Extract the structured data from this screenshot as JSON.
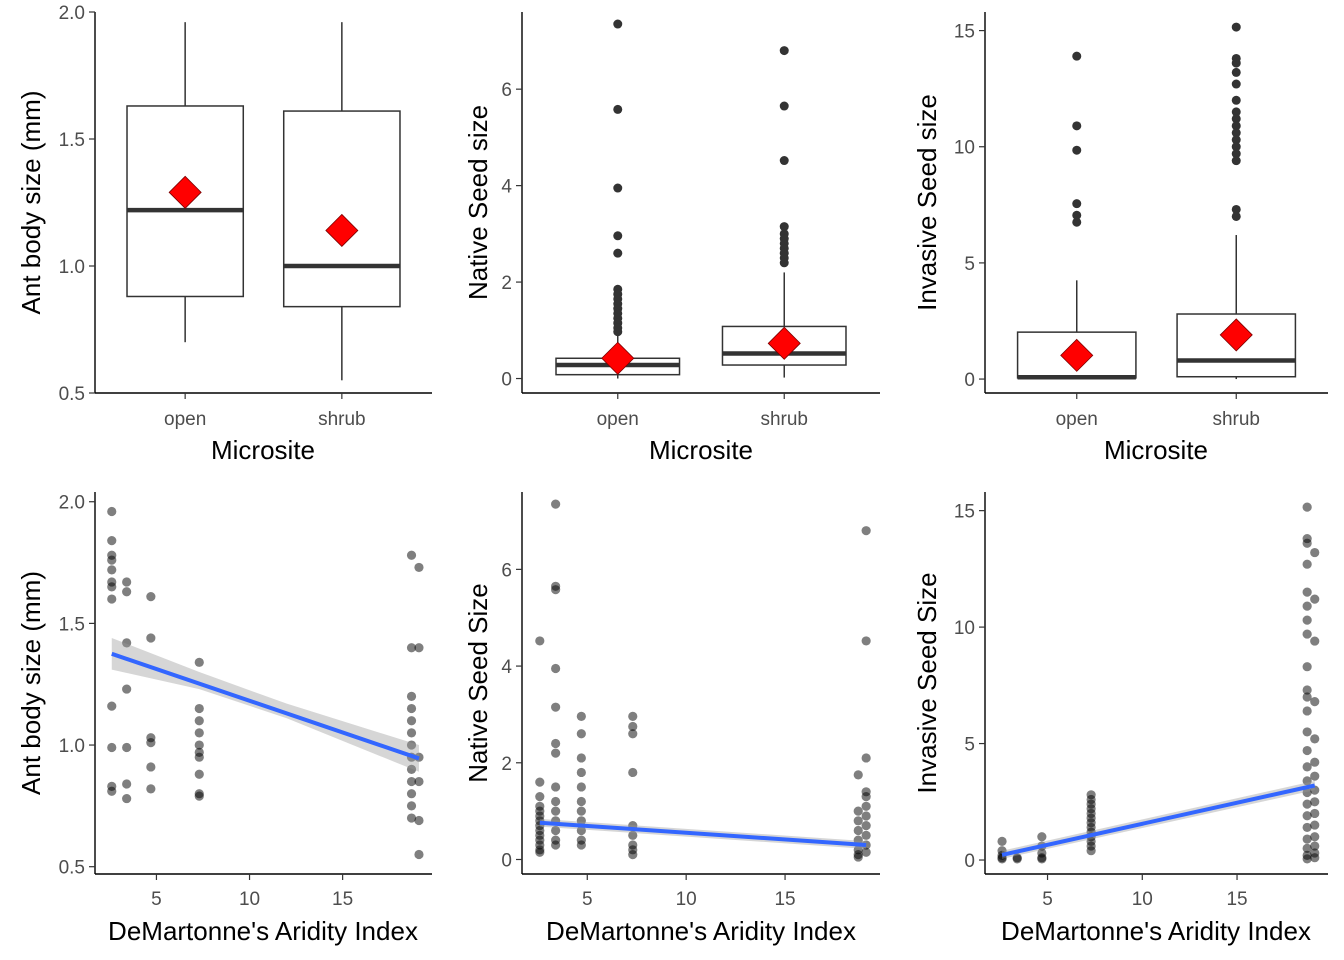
{
  "colors": {
    "mean": "#ff0000",
    "trend": "#3366ff",
    "ci_band": "#999999",
    "points": "#000000",
    "box": "#333333"
  },
  "chart_data": [
    {
      "type": "boxplot",
      "xlabel": "Microsite",
      "ylabel": "Ant body size (mm)",
      "ylim": [
        0.5,
        2.0
      ],
      "yticks": [
        0.5,
        1.0,
        1.5,
        2.0
      ],
      "ytick_labels": [
        "0.5",
        "1.0",
        "1.5",
        "2.0"
      ],
      "categories": [
        "open",
        "shrub"
      ],
      "boxes": [
        {
          "min": 0.7,
          "q1": 0.88,
          "median": 1.22,
          "q3": 1.63,
          "max": 1.96,
          "mean": 1.29,
          "outliers": []
        },
        {
          "min": 0.55,
          "q1": 0.84,
          "median": 1.0,
          "q3": 1.61,
          "max": 1.96,
          "mean": 1.14,
          "outliers": []
        }
      ]
    },
    {
      "type": "boxplot",
      "xlabel": "Microsite",
      "ylabel": "Native Seed size",
      "ylim": [
        -0.3,
        7.6
      ],
      "yticks": [
        0,
        2,
        4,
        6
      ],
      "ytick_labels": [
        "0",
        "2",
        "4",
        "6"
      ],
      "categories": [
        "open",
        "shrub"
      ],
      "boxes": [
        {
          "min": 0.0,
          "q1": 0.08,
          "median": 0.28,
          "q3": 0.42,
          "max": 0.9,
          "mean": 0.42,
          "outliers": [
            7.35,
            5.58,
            3.95,
            2.96,
            2.6,
            1.85,
            1.75,
            1.65,
            1.55,
            1.45,
            1.35,
            1.25,
            1.15,
            1.05,
            0.97
          ]
        },
        {
          "min": 0.02,
          "q1": 0.28,
          "median": 0.52,
          "q3": 1.08,
          "max": 2.2,
          "mean": 0.73,
          "outliers": [
            6.8,
            5.65,
            4.52,
            3.15,
            3.0,
            2.9,
            2.8,
            2.7,
            2.6,
            2.5,
            2.4
          ]
        }
      ]
    },
    {
      "type": "boxplot",
      "xlabel": "Microsite",
      "ylabel": "Invasive Seed size",
      "ylim": [
        -0.6,
        15.8
      ],
      "yticks": [
        0,
        5,
        10,
        15
      ],
      "ytick_labels": [
        "0",
        "5",
        "10",
        "15"
      ],
      "categories": [
        "open",
        "shrub"
      ],
      "boxes": [
        {
          "min": 0.0,
          "q1": 0.05,
          "median": 0.08,
          "q3": 2.02,
          "max": 4.25,
          "mean": 1.02,
          "outliers": [
            13.9,
            10.9,
            9.85,
            7.55,
            7.05,
            6.75
          ]
        },
        {
          "min": 0.0,
          "q1": 0.1,
          "median": 0.8,
          "q3": 2.8,
          "max": 6.2,
          "mean": 1.9,
          "outliers": [
            15.15,
            13.8,
            13.6,
            13.2,
            12.7,
            12.0,
            11.5,
            11.2,
            10.9,
            10.6,
            10.3,
            10.0,
            9.7,
            9.4,
            7.3,
            7.0
          ]
        }
      ]
    },
    {
      "type": "scatter",
      "xlabel": "DeMartonne's Aridity Index",
      "ylabel": "Ant body size (mm)",
      "xlim": [
        1.7,
        19.8
      ],
      "ylim": [
        0.47,
        2.04
      ],
      "xticks": [
        5,
        10,
        15
      ],
      "xtick_labels": [
        "5",
        "10",
        "15"
      ],
      "yticks": [
        0.5,
        1.0,
        1.5,
        2.0
      ],
      "ytick_labels": [
        "0.5",
        "1.0",
        "1.5",
        "2.0"
      ],
      "points": [
        [
          2.6,
          1.96
        ],
        [
          2.6,
          1.84
        ],
        [
          2.6,
          1.78
        ],
        [
          2.6,
          1.76
        ],
        [
          2.6,
          1.72
        ],
        [
          2.6,
          1.67
        ],
        [
          2.6,
          1.65
        ],
        [
          2.6,
          1.6
        ],
        [
          2.6,
          1.16
        ],
        [
          2.6,
          0.99
        ],
        [
          2.6,
          0.83
        ],
        [
          2.6,
          0.81
        ],
        [
          3.4,
          1.67
        ],
        [
          3.4,
          1.63
        ],
        [
          3.4,
          1.42
        ],
        [
          3.4,
          1.23
        ],
        [
          3.4,
          0.99
        ],
        [
          3.4,
          0.84
        ],
        [
          3.4,
          0.78
        ],
        [
          4.7,
          1.61
        ],
        [
          4.7,
          1.44
        ],
        [
          4.7,
          1.03
        ],
        [
          4.7,
          1.01
        ],
        [
          4.7,
          0.91
        ],
        [
          4.7,
          0.82
        ],
        [
          7.3,
          1.34
        ],
        [
          7.3,
          1.15
        ],
        [
          7.3,
          1.1
        ],
        [
          7.3,
          1.05
        ],
        [
          7.3,
          1.0
        ],
        [
          7.3,
          0.97
        ],
        [
          7.3,
          0.95
        ],
        [
          7.3,
          0.88
        ],
        [
          7.3,
          0.8
        ],
        [
          7.3,
          0.79
        ],
        [
          18.7,
          1.78
        ],
        [
          18.7,
          1.4
        ],
        [
          18.7,
          1.2
        ],
        [
          18.7,
          1.15
        ],
        [
          18.7,
          1.1
        ],
        [
          18.7,
          1.05
        ],
        [
          18.7,
          1.0
        ],
        [
          18.7,
          0.95
        ],
        [
          18.7,
          0.9
        ],
        [
          18.7,
          0.85
        ],
        [
          18.7,
          0.8
        ],
        [
          18.7,
          0.75
        ],
        [
          18.7,
          0.7
        ],
        [
          19.1,
          1.73
        ],
        [
          19.1,
          1.4
        ],
        [
          19.1,
          0.95
        ],
        [
          19.1,
          0.85
        ],
        [
          19.1,
          0.69
        ],
        [
          19.1,
          0.55
        ]
      ],
      "fit": {
        "x": [
          2.6,
          19.1
        ],
        "y": [
          1.375,
          0.945
        ]
      },
      "ci": {
        "x": [
          2.6,
          7.3,
          12.0,
          19.1
        ],
        "lower": [
          1.31,
          1.23,
          1.11,
          0.89
        ],
        "upper": [
          1.44,
          1.3,
          1.17,
          1.0
        ]
      }
    },
    {
      "type": "scatter",
      "xlabel": "DeMartonne's Aridity Index",
      "ylabel": "Native Seed Size",
      "xlim": [
        1.7,
        19.8
      ],
      "ylim": [
        -0.3,
        7.6
      ],
      "xticks": [
        5,
        10,
        15
      ],
      "xtick_labels": [
        "5",
        "10",
        "15"
      ],
      "yticks": [
        0,
        2,
        4,
        6
      ],
      "ytick_labels": [
        "0",
        "2",
        "4",
        "6"
      ],
      "points": [
        [
          2.6,
          4.52
        ],
        [
          2.6,
          1.6
        ],
        [
          2.6,
          1.3
        ],
        [
          2.6,
          1.1
        ],
        [
          2.6,
          1.0
        ],
        [
          2.6,
          0.9
        ],
        [
          2.6,
          0.8
        ],
        [
          2.6,
          0.7
        ],
        [
          2.6,
          0.6
        ],
        [
          2.6,
          0.5
        ],
        [
          2.6,
          0.4
        ],
        [
          2.6,
          0.3
        ],
        [
          2.6,
          0.2
        ],
        [
          2.6,
          0.15
        ],
        [
          3.4,
          7.35
        ],
        [
          3.4,
          5.65
        ],
        [
          3.4,
          5.58
        ],
        [
          3.4,
          3.95
        ],
        [
          3.4,
          3.15
        ],
        [
          3.4,
          2.4
        ],
        [
          3.4,
          2.2
        ],
        [
          3.4,
          1.5
        ],
        [
          3.4,
          1.2
        ],
        [
          3.4,
          1.0
        ],
        [
          3.4,
          0.8
        ],
        [
          3.4,
          0.6
        ],
        [
          3.4,
          0.4
        ],
        [
          3.4,
          0.3
        ],
        [
          4.7,
          2.96
        ],
        [
          4.7,
          2.6
        ],
        [
          4.7,
          2.1
        ],
        [
          4.7,
          1.8
        ],
        [
          4.7,
          1.5
        ],
        [
          4.7,
          1.2
        ],
        [
          4.7,
          1.0
        ],
        [
          4.7,
          0.8
        ],
        [
          4.7,
          0.6
        ],
        [
          4.7,
          0.4
        ],
        [
          4.7,
          0.3
        ],
        [
          7.3,
          2.96
        ],
        [
          7.3,
          2.75
        ],
        [
          7.3,
          2.6
        ],
        [
          7.3,
          1.8
        ],
        [
          7.3,
          0.7
        ],
        [
          7.3,
          0.5
        ],
        [
          7.3,
          0.3
        ],
        [
          7.3,
          0.2
        ],
        [
          7.3,
          0.1
        ],
        [
          18.7,
          1.75
        ],
        [
          18.7,
          1.0
        ],
        [
          18.7,
          0.8
        ],
        [
          18.7,
          0.6
        ],
        [
          18.7,
          0.4
        ],
        [
          18.7,
          0.2
        ],
        [
          18.7,
          0.1
        ],
        [
          18.7,
          0.05
        ],
        [
          19.1,
          6.8
        ],
        [
          19.1,
          4.52
        ],
        [
          19.1,
          2.1
        ],
        [
          19.1,
          1.4
        ],
        [
          19.1,
          1.3
        ],
        [
          19.1,
          1.1
        ],
        [
          19.1,
          0.9
        ],
        [
          19.1,
          0.7
        ],
        [
          19.1,
          0.5
        ],
        [
          19.1,
          0.3
        ],
        [
          19.1,
          0.15
        ]
      ],
      "fit": {
        "x": [
          2.6,
          19.1
        ],
        "y": [
          0.76,
          0.3
        ]
      },
      "ci": {
        "x": [
          2.6,
          19.1
        ],
        "lower": [
          0.68,
          0.22
        ],
        "upper": [
          0.84,
          0.38
        ]
      }
    },
    {
      "type": "scatter",
      "xlabel": "DeMartonne's Aridity Index",
      "ylabel": "Invasive Seed Size",
      "xlim": [
        1.7,
        19.8
      ],
      "ylim": [
        -0.6,
        15.8
      ],
      "xticks": [
        5,
        10,
        15
      ],
      "xtick_labels": [
        "5",
        "10",
        "15"
      ],
      "yticks": [
        0,
        5,
        10,
        15
      ],
      "ytick_labels": [
        "0",
        "5",
        "10",
        "15"
      ],
      "points": [
        [
          2.6,
          0.8
        ],
        [
          2.6,
          0.4
        ],
        [
          2.6,
          0.2
        ],
        [
          2.6,
          0.1
        ],
        [
          2.6,
          0.05
        ],
        [
          3.4,
          0.1
        ],
        [
          3.4,
          0.05
        ],
        [
          4.7,
          1.0
        ],
        [
          4.7,
          0.6
        ],
        [
          4.7,
          0.3
        ],
        [
          4.7,
          0.1
        ],
        [
          4.7,
          0.05
        ],
        [
          7.3,
          2.8
        ],
        [
          7.3,
          2.6
        ],
        [
          7.3,
          2.4
        ],
        [
          7.3,
          2.2
        ],
        [
          7.3,
          2.0
        ],
        [
          7.3,
          1.8
        ],
        [
          7.3,
          1.6
        ],
        [
          7.3,
          1.4
        ],
        [
          7.3,
          1.2
        ],
        [
          7.3,
          1.0
        ],
        [
          7.3,
          0.8
        ],
        [
          7.3,
          0.6
        ],
        [
          7.3,
          0.4
        ],
        [
          18.7,
          15.15
        ],
        [
          18.7,
          13.8
        ],
        [
          18.7,
          13.6
        ],
        [
          18.7,
          12.7
        ],
        [
          18.7,
          11.5
        ],
        [
          18.7,
          10.9
        ],
        [
          18.7,
          10.3
        ],
        [
          18.7,
          9.7
        ],
        [
          18.7,
          8.3
        ],
        [
          18.7,
          7.3
        ],
        [
          18.7,
          7.0
        ],
        [
          18.7,
          6.4
        ],
        [
          18.7,
          5.5
        ],
        [
          18.7,
          4.7
        ],
        [
          18.7,
          4.0
        ],
        [
          18.7,
          3.4
        ],
        [
          18.7,
          2.9
        ],
        [
          18.7,
          2.4
        ],
        [
          18.7,
          1.9
        ],
        [
          18.7,
          1.4
        ],
        [
          18.7,
          0.9
        ],
        [
          18.7,
          0.5
        ],
        [
          18.7,
          0.2
        ],
        [
          18.7,
          0.05
        ],
        [
          19.1,
          13.2
        ],
        [
          19.1,
          11.2
        ],
        [
          19.1,
          9.4
        ],
        [
          19.1,
          6.8
        ],
        [
          19.1,
          5.2
        ],
        [
          19.1,
          4.2
        ],
        [
          19.1,
          3.6
        ],
        [
          19.1,
          3.0
        ],
        [
          19.1,
          2.5
        ],
        [
          19.1,
          2.0
        ],
        [
          19.1,
          1.5
        ],
        [
          19.1,
          1.0
        ],
        [
          19.1,
          0.6
        ],
        [
          19.1,
          0.3
        ],
        [
          19.1,
          0.1
        ]
      ],
      "fit": {
        "x": [
          2.6,
          19.1
        ],
        "y": [
          0.22,
          3.2
        ]
      },
      "ci": {
        "x": [
          2.6,
          19.1
        ],
        "lower": [
          0.05,
          3.0
        ],
        "upper": [
          0.4,
          3.4
        ]
      }
    }
  ]
}
